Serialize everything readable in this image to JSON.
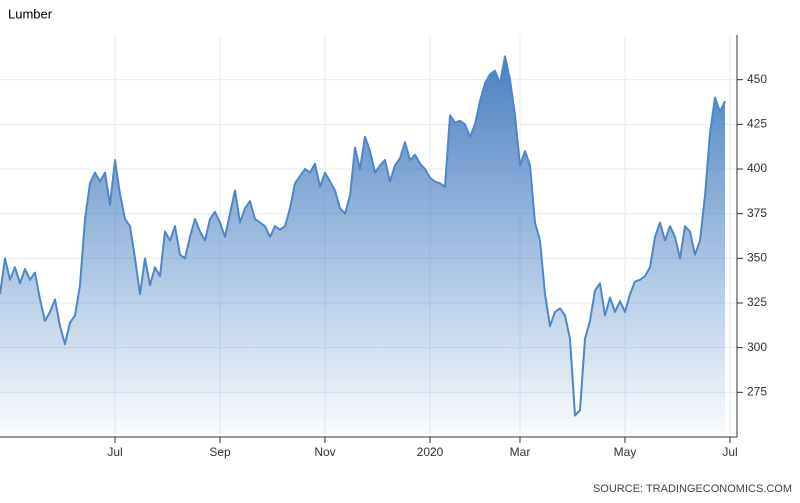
{
  "chart_data": {
    "type": "area",
    "title": "Lumber",
    "source": "SOURCE: TRADINGECONOMICS.COM",
    "color": "#4f86c6",
    "grid": true,
    "ylim": [
      250,
      475
    ],
    "yticks": [
      275,
      300,
      325,
      350,
      375,
      400,
      425,
      450
    ],
    "categories": [
      null,
      null,
      null,
      null,
      null,
      null,
      null,
      null,
      null,
      null,
      null,
      null,
      null,
      null,
      null,
      null,
      null,
      null,
      null,
      null,
      null,
      null,
      null,
      "Jul",
      null,
      null,
      null,
      null,
      null,
      null,
      null,
      null,
      null,
      null,
      null,
      null,
      null,
      null,
      null,
      null,
      null,
      null,
      null,
      null,
      "Sep",
      null,
      null,
      null,
      null,
      null,
      null,
      null,
      null,
      null,
      null,
      null,
      null,
      null,
      null,
      null,
      null,
      null,
      null,
      null,
      null,
      "Nov",
      null,
      null,
      null,
      null,
      null,
      null,
      null,
      null,
      null,
      null,
      null,
      null,
      null,
      null,
      null,
      null,
      null,
      null,
      null,
      null,
      "2020",
      null,
      null,
      null,
      null,
      null,
      null,
      null,
      null,
      null,
      null,
      null,
      null,
      null,
      null,
      null,
      null,
      null,
      "Mar",
      null,
      null,
      null,
      null,
      null,
      null,
      null,
      null,
      null,
      null,
      null,
      null,
      null,
      null,
      null,
      null,
      null,
      null,
      null,
      null,
      "May",
      null,
      null,
      null,
      null,
      null,
      null,
      null,
      null,
      null,
      null,
      null,
      null,
      null,
      null,
      null,
      null,
      null,
      null,
      null,
      null,
      "Jul"
    ],
    "values": [
      330,
      350,
      338,
      345,
      336,
      344,
      338,
      342,
      327,
      315,
      320,
      327,
      312,
      302,
      314,
      318,
      335,
      372,
      392,
      398,
      393,
      398,
      380,
      405,
      386,
      372,
      368,
      350,
      330,
      350,
      335,
      345,
      340,
      365,
      360,
      368,
      352,
      350,
      362,
      372,
      365,
      360,
      372,
      376,
      370,
      362,
      375,
      388,
      370,
      378,
      382,
      372,
      370,
      368,
      362,
      368,
      366,
      368,
      378,
      392,
      396,
      400,
      398,
      403,
      390,
      398,
      393,
      388,
      378,
      375,
      385,
      412,
      400,
      418,
      410,
      398,
      402,
      405,
      393,
      402,
      406,
      415,
      405,
      408,
      403,
      400,
      395,
      393,
      392,
      390,
      430,
      426,
      427,
      425,
      418,
      425,
      438,
      448,
      453,
      455,
      448,
      463,
      450,
      430,
      402,
      410,
      402,
      370,
      360,
      330,
      312,
      320,
      322,
      318,
      305,
      262,
      265,
      305,
      315,
      332,
      336,
      318,
      328,
      320,
      326,
      320,
      330,
      337,
      338,
      340,
      345,
      362,
      370,
      360,
      368,
      362,
      350,
      368,
      365,
      352,
      360,
      385,
      420,
      440,
      432,
      438,
      null
    ]
  }
}
